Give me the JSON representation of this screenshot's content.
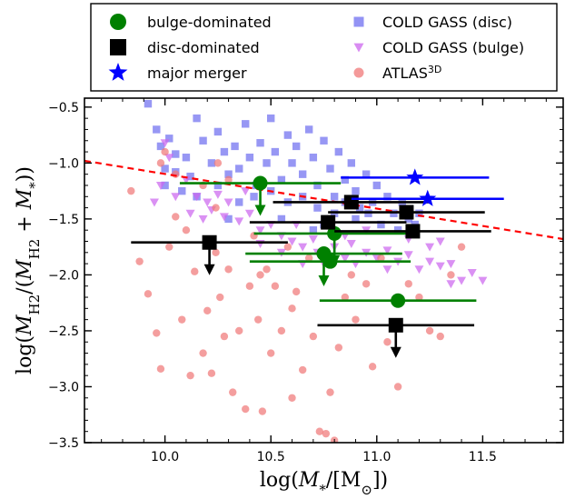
{
  "chart_data": {
    "type": "scatter",
    "xlabel": "log(M_*/[M_⊙])",
    "ylabel": "log(M_H2/(M_H2 + M_*))",
    "xlim": [
      9.62,
      11.88
    ],
    "ylim": [
      -3.5,
      -0.42
    ],
    "xticks": [
      10.0,
      10.5,
      11.0,
      11.5
    ],
    "xtick_labels": [
      "10.0",
      "10.5",
      "11.0",
      "11.5"
    ],
    "yticks": [
      -0.5,
      -1.0,
      -1.5,
      -2.0,
      -2.5,
      -3.0,
      -3.5
    ],
    "ytick_labels": [
      "−0.5",
      "−1.0",
      "−1.5",
      "−2.0",
      "−2.5",
      "−3.0",
      "−3.5"
    ],
    "grid": false,
    "legend_position": "top-outside",
    "legend": [
      {
        "label": "bulge-dominated",
        "marker": "circle",
        "color": "#008000"
      },
      {
        "label": "disc-dominated",
        "marker": "square",
        "color": "#000000"
      },
      {
        "label": "major merger",
        "marker": "star",
        "color": "#0000ff"
      },
      {
        "label": "COLD GASS (disc)",
        "marker": "square",
        "color": "#6f6ff0"
      },
      {
        "label": "COLD GASS (bulge)",
        "marker": "triangle-down",
        "color": "#cc66ee"
      },
      {
        "label": "ATLAS",
        "label_sup": "3D",
        "marker": "circle",
        "color": "#f07878"
      }
    ],
    "trend_line": {
      "color": "#ff0000",
      "style": "dashed",
      "x": [
        9.62,
        11.88
      ],
      "y": [
        -0.98,
        -1.68
      ]
    },
    "series": [
      {
        "name": "COLD GASS (disc)",
        "marker": "square",
        "color": "#6f6ff0",
        "points": [
          [
            9.92,
            -0.47
          ],
          [
            9.96,
            -0.7
          ],
          [
            9.98,
            -0.85
          ],
          [
            10.02,
            -0.78
          ],
          [
            10.05,
            -0.92
          ],
          [
            10.0,
            -1.05
          ],
          [
            10.05,
            -1.08
          ],
          [
            10.1,
            -0.95
          ],
          [
            10.12,
            -1.12
          ],
          [
            10.15,
            -0.6
          ],
          [
            10.18,
            -0.8
          ],
          [
            10.22,
            -1.0
          ],
          [
            10.25,
            -0.72
          ],
          [
            10.28,
            -0.9
          ],
          [
            10.3,
            -1.1
          ],
          [
            10.33,
            -0.85
          ],
          [
            10.35,
            -1.05
          ],
          [
            10.38,
            -0.65
          ],
          [
            10.4,
            -0.95
          ],
          [
            10.43,
            -1.2
          ],
          [
            10.45,
            -0.82
          ],
          [
            10.48,
            -1.0
          ],
          [
            10.5,
            -0.6
          ],
          [
            10.52,
            -0.9
          ],
          [
            10.55,
            -1.15
          ],
          [
            10.58,
            -0.75
          ],
          [
            10.6,
            -1.0
          ],
          [
            10.62,
            -0.85
          ],
          [
            10.65,
            -1.1
          ],
          [
            10.68,
            -0.7
          ],
          [
            10.7,
            -0.95
          ],
          [
            10.72,
            -1.2
          ],
          [
            10.75,
            -0.8
          ],
          [
            10.78,
            -1.05
          ],
          [
            10.8,
            -1.3
          ],
          [
            10.82,
            -0.9
          ],
          [
            10.85,
            -1.15
          ],
          [
            10.88,
            -1.0
          ],
          [
            10.9,
            -1.25
          ],
          [
            10.92,
            -1.4
          ],
          [
            10.95,
            -1.1
          ],
          [
            10.98,
            -1.35
          ],
          [
            11.0,
            -1.2
          ],
          [
            11.05,
            -1.3
          ],
          [
            11.08,
            -1.45
          ],
          [
            11.12,
            -1.35
          ],
          [
            11.15,
            -1.5
          ],
          [
            11.2,
            -1.45
          ],
          [
            10.0,
            -1.2
          ],
          [
            10.08,
            -1.25
          ],
          [
            10.15,
            -1.3
          ],
          [
            10.25,
            -1.2
          ],
          [
            10.35,
            -1.35
          ],
          [
            10.42,
            -1.3
          ],
          [
            10.5,
            -1.25
          ],
          [
            10.58,
            -1.35
          ],
          [
            10.65,
            -1.3
          ],
          [
            10.72,
            -1.4
          ],
          [
            10.8,
            -1.45
          ],
          [
            10.85,
            -1.35
          ],
          [
            10.9,
            -1.5
          ],
          [
            10.96,
            -1.45
          ],
          [
            11.02,
            -1.55
          ],
          [
            11.1,
            -1.6
          ],
          [
            11.18,
            -1.55
          ],
          [
            10.3,
            -1.5
          ],
          [
            10.55,
            -1.5
          ],
          [
            10.7,
            -1.6
          ],
          [
            10.75,
            -1.55
          ]
        ]
      },
      {
        "name": "COLD GASS (bulge)",
        "marker": "triangle-down",
        "color": "#cc66ee",
        "points": [
          [
            9.95,
            -1.35
          ],
          [
            9.98,
            -1.2
          ],
          [
            10.0,
            -0.82
          ],
          [
            10.02,
            -0.95
          ],
          [
            10.05,
            -1.3
          ],
          [
            10.1,
            -1.15
          ],
          [
            10.12,
            -1.45
          ],
          [
            10.15,
            -1.3
          ],
          [
            10.18,
            -1.5
          ],
          [
            10.2,
            -1.35
          ],
          [
            10.22,
            -1.42
          ],
          [
            10.25,
            -1.28
          ],
          [
            10.28,
            -1.48
          ],
          [
            10.3,
            -1.35
          ],
          [
            10.35,
            -1.52
          ],
          [
            10.4,
            -1.45
          ],
          [
            10.45,
            -1.6
          ],
          [
            10.5,
            -1.55
          ],
          [
            10.55,
            -1.65
          ],
          [
            10.6,
            -1.7
          ],
          [
            10.62,
            -1.55
          ],
          [
            10.65,
            -1.75
          ],
          [
            10.7,
            -1.68
          ],
          [
            10.72,
            -1.8
          ],
          [
            10.75,
            -1.9
          ],
          [
            10.8,
            -1.75
          ],
          [
            10.85,
            -1.85
          ],
          [
            10.88,
            -1.72
          ],
          [
            10.9,
            -1.9
          ],
          [
            10.95,
            -1.8
          ],
          [
            11.0,
            -1.85
          ],
          [
            11.05,
            -1.78
          ],
          [
            11.1,
            -1.88
          ],
          [
            11.15,
            -1.82
          ],
          [
            11.2,
            -1.95
          ],
          [
            11.25,
            -1.88
          ],
          [
            11.3,
            -1.92
          ],
          [
            11.35,
            -1.9
          ],
          [
            11.4,
            -2.05
          ],
          [
            11.45,
            -1.98
          ],
          [
            11.5,
            -2.05
          ],
          [
            11.25,
            -1.75
          ],
          [
            11.3,
            -1.7
          ],
          [
            11.05,
            -1.95
          ],
          [
            10.65,
            -1.9
          ],
          [
            10.55,
            -1.8
          ],
          [
            10.45,
            -1.72
          ],
          [
            10.85,
            -1.65
          ],
          [
            10.95,
            -1.6
          ],
          [
            11.15,
            -1.68
          ],
          [
            11.35,
            -2.08
          ],
          [
            10.38,
            -1.25
          ]
        ]
      },
      {
        "name": "ATLAS3D",
        "marker": "circle",
        "color": "#f07878",
        "points": [
          [
            9.84,
            -1.25
          ],
          [
            9.88,
            -1.88
          ],
          [
            9.92,
            -2.17
          ],
          [
            9.96,
            -2.52
          ],
          [
            9.98,
            -2.84
          ],
          [
            10.02,
            -1.75
          ],
          [
            10.05,
            -1.1
          ],
          [
            10.08,
            -2.4
          ],
          [
            10.12,
            -2.9
          ],
          [
            10.14,
            -1.97
          ],
          [
            10.18,
            -2.7
          ],
          [
            10.2,
            -2.32
          ],
          [
            10.22,
            -2.88
          ],
          [
            10.24,
            -1.8
          ],
          [
            10.26,
            -2.2
          ],
          [
            10.28,
            -2.55
          ],
          [
            10.3,
            -1.95
          ],
          [
            10.32,
            -3.05
          ],
          [
            10.35,
            -2.5
          ],
          [
            10.38,
            -3.2
          ],
          [
            10.4,
            -2.1
          ],
          [
            10.42,
            -1.65
          ],
          [
            10.44,
            -2.4
          ],
          [
            10.46,
            -3.22
          ],
          [
            10.48,
            -1.95
          ],
          [
            10.5,
            -2.7
          ],
          [
            10.52,
            -2.1
          ],
          [
            10.55,
            -2.5
          ],
          [
            10.58,
            -1.75
          ],
          [
            10.6,
            -3.1
          ],
          [
            10.62,
            -2.15
          ],
          [
            10.65,
            -2.85
          ],
          [
            10.68,
            -1.85
          ],
          [
            10.7,
            -2.55
          ],
          [
            10.73,
            -3.4
          ],
          [
            10.76,
            -3.42
          ],
          [
            10.78,
            -3.05
          ],
          [
            10.8,
            -3.48
          ],
          [
            10.82,
            -2.65
          ],
          [
            10.85,
            -2.2
          ],
          [
            10.88,
            -2.0
          ],
          [
            10.9,
            -2.4
          ],
          [
            10.95,
            -2.08
          ],
          [
            10.98,
            -2.82
          ],
          [
            11.02,
            -1.85
          ],
          [
            11.05,
            -2.6
          ],
          [
            11.1,
            -3.0
          ],
          [
            11.15,
            -2.08
          ],
          [
            11.2,
            -2.2
          ],
          [
            11.25,
            -2.5
          ],
          [
            11.3,
            -2.55
          ],
          [
            11.35,
            -2.0
          ],
          [
            11.4,
            -1.75
          ],
          [
            10.0,
            -0.9
          ],
          [
            9.98,
            -1.0
          ],
          [
            10.05,
            -1.48
          ],
          [
            10.25,
            -1.0
          ],
          [
            10.3,
            -1.15
          ],
          [
            10.1,
            -1.6
          ],
          [
            10.18,
            -1.2
          ],
          [
            10.24,
            -1.4
          ],
          [
            10.6,
            -2.3
          ],
          [
            10.45,
            -2.0
          ]
        ]
      },
      {
        "name": "bulge-dominated",
        "marker": "circle",
        "color": "#008000",
        "points": [
          {
            "x": 10.45,
            "y": -1.18,
            "xerr": [
              10.07,
              10.83
            ],
            "arrow": true
          },
          {
            "x": 10.75,
            "y": -1.81,
            "xerr": [
              10.38,
              11.12
            ],
            "arrow": true
          },
          {
            "x": 10.8,
            "y": -1.63,
            "xerr": [
              10.42,
              11.18
            ],
            "arrow": true
          },
          {
            "x": 10.78,
            "y": -1.88,
            "xerr": [
              10.4,
              11.16
            ],
            "arrow": false
          },
          {
            "x": 11.1,
            "y": -2.23,
            "xerr": [
              10.73,
              11.47
            ],
            "arrow": false
          }
        ]
      },
      {
        "name": "disc-dominated",
        "marker": "square",
        "color": "#000000",
        "points": [
          {
            "x": 10.21,
            "y": -1.71,
            "xerr": [
              9.84,
              10.58
            ],
            "arrow": true
          },
          {
            "x": 10.77,
            "y": -1.53,
            "xerr": [
              10.4,
              11.14
            ],
            "arrow": false
          },
          {
            "x": 10.88,
            "y": -1.35,
            "xerr": [
              10.51,
              11.25
            ],
            "arrow": false
          },
          {
            "x": 11.14,
            "y": -1.44,
            "xerr": [
              10.77,
              11.51
            ],
            "arrow": false
          },
          {
            "x": 11.17,
            "y": -1.61,
            "xerr": [
              10.8,
              11.54
            ],
            "arrow": false
          },
          {
            "x": 11.09,
            "y": -2.45,
            "xerr": [
              10.72,
              11.46
            ],
            "arrow": true
          }
        ]
      },
      {
        "name": "major merger",
        "marker": "star",
        "color": "#0000ff",
        "points": [
          {
            "x": 11.18,
            "y": -1.13,
            "xerr": [
              10.83,
              11.53
            ],
            "arrow": false
          },
          {
            "x": 11.24,
            "y": -1.32,
            "xerr": [
              10.88,
              11.6
            ],
            "arrow": false
          }
        ]
      }
    ]
  }
}
